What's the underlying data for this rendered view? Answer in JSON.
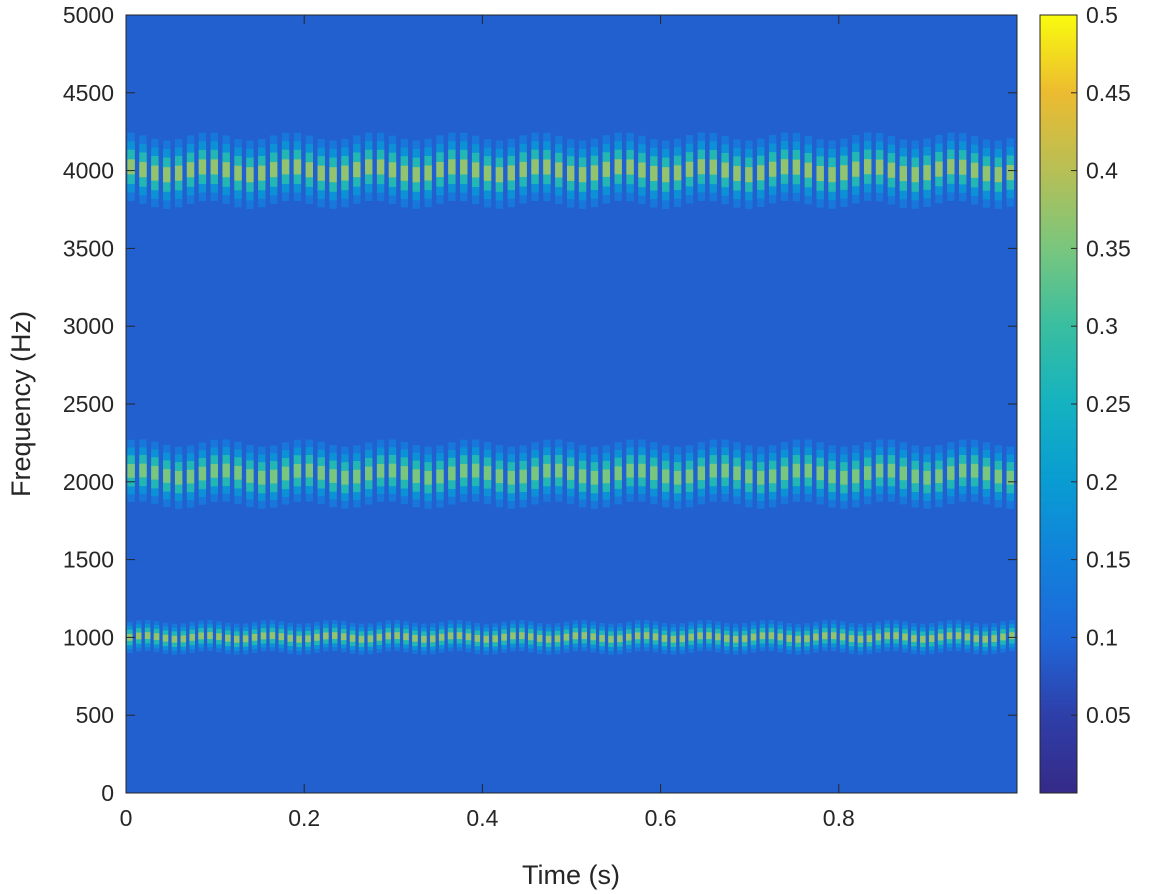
{
  "chart_data": {
    "type": "heatmap",
    "title": "",
    "xlabel": "Time (s)",
    "ylabel": "Frequency (Hz)",
    "xlim": [
      0,
      1
    ],
    "ylim": [
      0,
      5000
    ],
    "x_ticks": [
      0,
      0.2,
      0.4,
      0.6,
      0.8
    ],
    "x_tick_labels": [
      "0",
      "0.2",
      "0.4",
      "0.6",
      "0.8"
    ],
    "y_ticks": [
      0,
      500,
      1000,
      1500,
      2000,
      2500,
      3000,
      3500,
      4000,
      4500,
      5000
    ],
    "y_tick_labels": [
      "0",
      "500",
      "1000",
      "1500",
      "2000",
      "2500",
      "3000",
      "3500",
      "4000",
      "4500",
      "5000"
    ],
    "colorbar": {
      "colormap": "parula",
      "clim": [
        0,
        0.5
      ],
      "ticks": [
        0.05,
        0.1,
        0.15,
        0.2,
        0.25,
        0.3,
        0.35,
        0.4,
        0.45,
        0.5
      ],
      "tick_labels": [
        "0.05",
        "0.1",
        "0.15",
        "0.2",
        "0.25",
        "0.3",
        "0.35",
        "0.4",
        "0.45",
        "0.5"
      ]
    },
    "background_level": 0.09,
    "bands": [
      {
        "center_hz": 1000,
        "halfwidth_hz": 100,
        "peak_level": 0.37,
        "stripes": 100
      },
      {
        "center_hz": 2050,
        "halfwidth_hz": 200,
        "peak_level": 0.35,
        "stripes": 75
      },
      {
        "center_hz": 4000,
        "halfwidth_hz": 220,
        "peak_level": 0.37,
        "stripes": 75
      }
    ],
    "grid": false
  }
}
